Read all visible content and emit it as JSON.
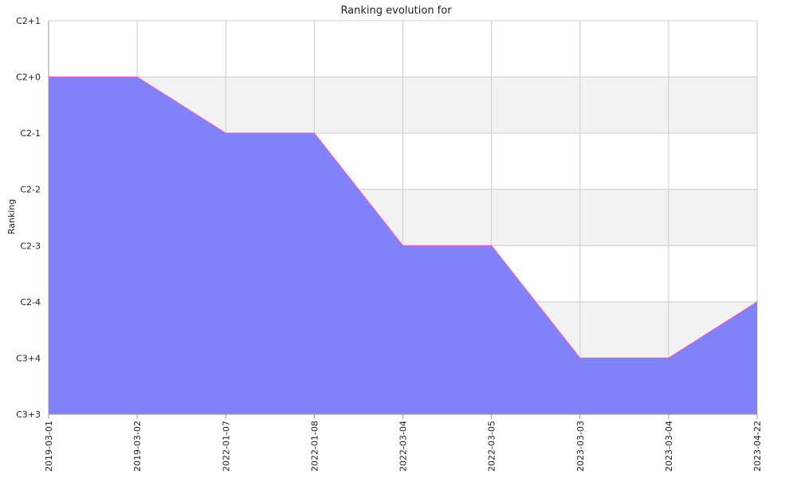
{
  "chart_data": {
    "type": "area",
    "title": "Ranking evolution for",
    "xlabel": "",
    "ylabel": "Ranking",
    "y_tick_labels": [
      "C2+1",
      "C2+0",
      "C2-1",
      "C2-2",
      "C2-3",
      "C2-4",
      "C3+4",
      "C3+3"
    ],
    "categories": [
      "2019-03-01",
      "2019-03-02",
      "2022-01-07",
      "2022-01-08",
      "2022-03-04",
      "2022-03-05",
      "2023-03-03",
      "2023-03-04",
      "2023-04-22"
    ],
    "values": [
      "C2+0",
      "C2+0",
      "C2-1",
      "C2-1",
      "C2-3",
      "C2-3",
      "C3+4",
      "C3+4",
      "C2-4"
    ],
    "grid": true,
    "alternating_bands": true,
    "colors": {
      "fill": "#7d7dfa",
      "line": "#ff5aa0",
      "band": "#f2f2f2",
      "grid": "#cccccc",
      "axis": "#999999"
    }
  }
}
